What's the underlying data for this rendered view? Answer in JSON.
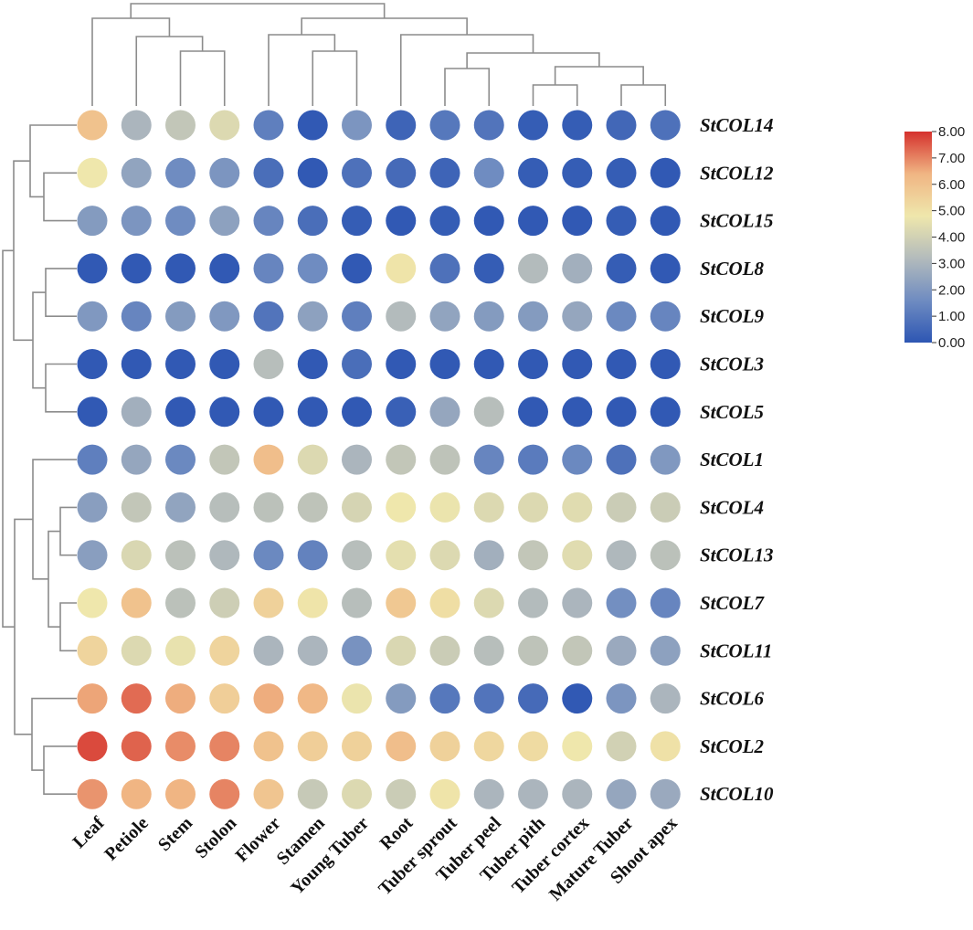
{
  "chart_data": {
    "type": "heatmap",
    "title": "",
    "columns": [
      "Leaf",
      "Petiole",
      "Stem",
      "Stolon",
      "Flower",
      "Stamen",
      "Young Tuber",
      "Root",
      "Tuber sprout",
      "Tuber peel",
      "Tuber pith",
      "Tuber cortex",
      "Mature Tuber",
      "Shoot apex"
    ],
    "rows": [
      "StCOL14",
      "StCOL12",
      "StCOL15",
      "StCOL8",
      "StCOL9",
      "StCOL3",
      "StCOL5",
      "StCOL1",
      "StCOL4",
      "StCOL13",
      "StCOL7",
      "StCOL11",
      "StCOL6",
      "StCOL2",
      "StCOL10"
    ],
    "values": [
      [
        6.0,
        3.0,
        3.6,
        4.3,
        1.2,
        0.1,
        1.9,
        0.4,
        1.0,
        0.9,
        0.2,
        0.2,
        0.5,
        0.8
      ],
      [
        4.8,
        2.4,
        1.6,
        1.9,
        0.7,
        0.1,
        0.8,
        0.6,
        0.4,
        1.6,
        0.2,
        0.2,
        0.2,
        0.1
      ],
      [
        2.1,
        1.9,
        1.6,
        2.3,
        1.4,
        0.7,
        0.2,
        0.1,
        0.2,
        0.1,
        0.1,
        0.1,
        0.2,
        0.1
      ],
      [
        0.1,
        0.1,
        0.1,
        0.1,
        1.4,
        1.6,
        0.1,
        4.9,
        0.8,
        0.2,
        3.2,
        2.8,
        0.2,
        0.1
      ],
      [
        2.0,
        1.4,
        2.1,
        2.0,
        0.9,
        2.3,
        1.2,
        3.2,
        2.4,
        2.1,
        2.1,
        2.5,
        1.5,
        1.4
      ],
      [
        0.1,
        0.1,
        0.1,
        0.1,
        3.3,
        0.1,
        0.7,
        0.1,
        0.1,
        0.1,
        0.1,
        0.1,
        0.1,
        0.1
      ],
      [
        0.1,
        2.8,
        0.1,
        0.1,
        0.1,
        0.1,
        0.1,
        0.3,
        2.5,
        3.3,
        0.1,
        0.1,
        0.1,
        0.1
      ],
      [
        1.2,
        2.5,
        1.5,
        3.6,
        6.1,
        4.3,
        3.0,
        3.6,
        3.5,
        1.4,
        1.1,
        1.5,
        0.8,
        2.0
      ],
      [
        2.2,
        3.6,
        2.4,
        3.3,
        3.4,
        3.5,
        4.1,
        4.8,
        4.7,
        4.3,
        4.3,
        4.4,
        3.8,
        3.8
      ],
      [
        2.2,
        4.2,
        3.4,
        3.1,
        1.5,
        1.3,
        3.3,
        4.5,
        4.3,
        2.8,
        3.6,
        4.4,
        3.1,
        3.4
      ],
      [
        4.8,
        6.0,
        3.4,
        3.9,
        5.5,
        4.9,
        3.3,
        5.8,
        5.1,
        4.3,
        3.2,
        3.0,
        1.7,
        1.4
      ],
      [
        5.4,
        4.3,
        4.6,
        5.4,
        3.0,
        3.0,
        1.8,
        4.2,
        3.8,
        3.3,
        3.5,
        3.6,
        2.6,
        2.3
      ],
      [
        6.6,
        7.3,
        6.5,
        5.6,
        6.5,
        6.3,
        4.7,
        2.1,
        1.0,
        0.9,
        0.6,
        0.1,
        1.9,
        3.0
      ],
      [
        7.7,
        7.4,
        6.9,
        7.0,
        6.0,
        5.6,
        5.5,
        6.1,
        5.5,
        5.3,
        5.2,
        4.8,
        4.0,
        5.0
      ],
      [
        6.8,
        6.4,
        6.4,
        7.0,
        5.9,
        3.7,
        4.3,
        3.8,
        4.9,
        3.0,
        3.0,
        3.0,
        2.5,
        2.6
      ]
    ],
    "scale": {
      "min": 0,
      "max": 8,
      "ticks": [
        "8.00",
        "7.00",
        "6.00",
        "5.00",
        "4.00",
        "3.00",
        "2.00",
        "1.00",
        "0.00"
      ],
      "colors": [
        "#2d56b3",
        "#6f8cc1",
        "#b3bbbc",
        "#efe7ac",
        "#f0b583",
        "#d5312d"
      ]
    }
  }
}
